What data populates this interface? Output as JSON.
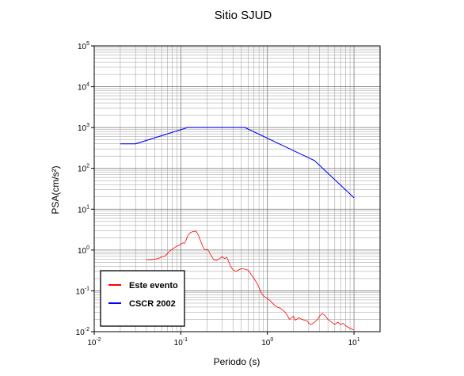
{
  "chart_data": {
    "type": "line",
    "title": "Sitio SJUD",
    "xlabel": "Periodo (s)",
    "ylabel": "PSA(cm/s²)",
    "x_scale": "log",
    "y_scale": "log",
    "xlim": [
      0.01,
      20
    ],
    "ylim": [
      0.01,
      100000
    ],
    "grid": true,
    "legend_position": "bottom-left",
    "x_ticks": [
      {
        "base": "10",
        "exp": "-2",
        "value": 0.01
      },
      {
        "base": "10",
        "exp": "-1",
        "value": 0.1
      },
      {
        "base": "10",
        "exp": "0",
        "value": 1
      },
      {
        "base": "10",
        "exp": "1",
        "value": 10
      }
    ],
    "y_ticks": [
      {
        "base": "10",
        "exp": "-2",
        "value": 0.01
      },
      {
        "base": "10",
        "exp": "-1",
        "value": 0.1
      },
      {
        "base": "10",
        "exp": "0",
        "value": 1
      },
      {
        "base": "10",
        "exp": "1",
        "value": 10
      },
      {
        "base": "10",
        "exp": "2",
        "value": 100
      },
      {
        "base": "10",
        "exp": "3",
        "value": 1000
      },
      {
        "base": "10",
        "exp": "4",
        "value": 10000
      },
      {
        "base": "10",
        "exp": "5",
        "value": 100000
      }
    ],
    "series": [
      {
        "name": "Este evento",
        "color": "#ff0000",
        "points": [
          [
            0.04,
            0.58
          ],
          [
            0.045,
            0.58
          ],
          [
            0.05,
            0.6
          ],
          [
            0.055,
            0.62
          ],
          [
            0.06,
            0.68
          ],
          [
            0.065,
            0.7
          ],
          [
            0.07,
            0.82
          ],
          [
            0.075,
            0.95
          ],
          [
            0.08,
            1.05
          ],
          [
            0.085,
            1.15
          ],
          [
            0.09,
            1.25
          ],
          [
            0.095,
            1.3
          ],
          [
            0.1,
            1.38
          ],
          [
            0.105,
            1.5
          ],
          [
            0.11,
            1.45
          ],
          [
            0.115,
            1.75
          ],
          [
            0.12,
            2.2
          ],
          [
            0.125,
            2.5
          ],
          [
            0.13,
            2.7
          ],
          [
            0.14,
            2.85
          ],
          [
            0.15,
            2.9
          ],
          [
            0.16,
            2.3
          ],
          [
            0.17,
            1.6
          ],
          [
            0.18,
            1.2
          ],
          [
            0.19,
            1.0
          ],
          [
            0.2,
            1.05
          ],
          [
            0.21,
            0.95
          ],
          [
            0.22,
            0.78
          ],
          [
            0.24,
            0.58
          ],
          [
            0.26,
            0.56
          ],
          [
            0.28,
            0.62
          ],
          [
            0.3,
            0.68
          ],
          [
            0.32,
            0.62
          ],
          [
            0.34,
            0.66
          ],
          [
            0.36,
            0.5
          ],
          [
            0.38,
            0.38
          ],
          [
            0.4,
            0.33
          ],
          [
            0.43,
            0.3
          ],
          [
            0.46,
            0.32
          ],
          [
            0.5,
            0.35
          ],
          [
            0.55,
            0.34
          ],
          [
            0.6,
            0.32
          ],
          [
            0.65,
            0.25
          ],
          [
            0.7,
            0.2
          ],
          [
            0.75,
            0.16
          ],
          [
            0.8,
            0.12
          ],
          [
            0.85,
            0.09
          ],
          [
            0.9,
            0.075
          ],
          [
            1.0,
            0.065
          ],
          [
            1.1,
            0.055
          ],
          [
            1.2,
            0.045
          ],
          [
            1.3,
            0.04
          ],
          [
            1.4,
            0.038
          ],
          [
            1.5,
            0.034
          ],
          [
            1.6,
            0.03
          ],
          [
            1.7,
            0.025
          ],
          [
            1.8,
            0.02
          ],
          [
            2.0,
            0.024
          ],
          [
            2.1,
            0.019
          ],
          [
            2.3,
            0.022
          ],
          [
            2.5,
            0.02
          ],
          [
            2.7,
            0.019
          ],
          [
            2.9,
            0.018
          ],
          [
            3.0,
            0.016
          ],
          [
            3.2,
            0.015
          ],
          [
            3.5,
            0.017
          ],
          [
            3.8,
            0.02
          ],
          [
            4.0,
            0.024
          ],
          [
            4.3,
            0.028
          ],
          [
            4.6,
            0.025
          ],
          [
            5.0,
            0.02
          ],
          [
            5.5,
            0.017
          ],
          [
            6.0,
            0.015
          ],
          [
            6.5,
            0.017
          ],
          [
            7.0,
            0.015
          ],
          [
            7.5,
            0.016
          ],
          [
            8.0,
            0.014
          ],
          [
            9.0,
            0.012
          ],
          [
            10.0,
            0.011
          ]
        ]
      },
      {
        "name": "CSCR 2002",
        "color": "#0000ff",
        "points": [
          [
            0.02,
            400
          ],
          [
            0.03,
            400
          ],
          [
            0.12,
            1000
          ],
          [
            0.55,
            1000
          ],
          [
            3.5,
            155
          ],
          [
            10.0,
            19
          ]
        ]
      }
    ]
  }
}
